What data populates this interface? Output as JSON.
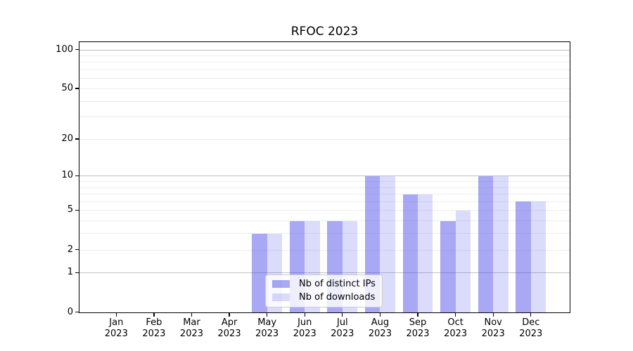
{
  "chart_data": {
    "type": "bar",
    "title": "RFOC 2023",
    "categories": [
      {
        "month": "Jan",
        "year": "2023"
      },
      {
        "month": "Feb",
        "year": "2023"
      },
      {
        "month": "Mar",
        "year": "2023"
      },
      {
        "month": "Apr",
        "year": "2023"
      },
      {
        "month": "May",
        "year": "2023"
      },
      {
        "month": "Jun",
        "year": "2023"
      },
      {
        "month": "Jul",
        "year": "2023"
      },
      {
        "month": "Aug",
        "year": "2023"
      },
      {
        "month": "Sep",
        "year": "2023"
      },
      {
        "month": "Oct",
        "year": "2023"
      },
      {
        "month": "Nov",
        "year": "2023"
      },
      {
        "month": "Dec",
        "year": "2023"
      }
    ],
    "series": [
      {
        "name": "Nb of distinct IPs",
        "color": "#4d4de97d",
        "values": [
          0,
          0,
          0,
          0,
          3,
          4,
          4,
          10,
          7,
          4,
          10,
          6
        ]
      },
      {
        "name": "Nb of downloads",
        "color": "#4d4de933",
        "values": [
          0,
          0,
          0,
          0,
          3,
          4,
          4,
          10,
          7,
          5,
          10,
          6
        ]
      }
    ],
    "y_axis": {
      "scale": "log1p",
      "range": [
        0,
        100
      ],
      "tick_values": [
        0,
        1,
        2,
        5,
        10,
        20,
        50,
        100
      ],
      "tick_labels": [
        "0",
        "1",
        "2",
        "5",
        "10",
        "20",
        "50",
        "100"
      ],
      "major_gridlines": [
        1,
        10,
        100
      ],
      "minor_gridlines": [
        2,
        3,
        4,
        5,
        6,
        7,
        8,
        9,
        20,
        30,
        40,
        50,
        60,
        70,
        80,
        90
      ]
    },
    "grid": true,
    "legend_position": "lower-center"
  },
  "colors": {
    "axis": "#000000",
    "grid_major": "#c2c2c2",
    "grid_minor": "#ededed",
    "legend_background": "rgba(255,255,255,0.8)",
    "legend_border": "#cccccc",
    "text": "#000000"
  }
}
